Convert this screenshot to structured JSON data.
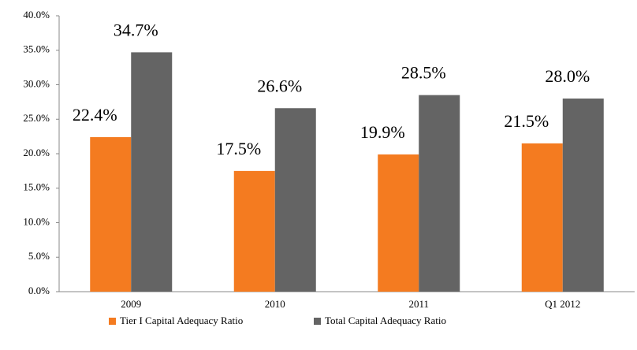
{
  "chart_data": {
    "type": "bar",
    "categories": [
      "2009",
      "2010",
      "2011",
      "Q1 2012"
    ],
    "series": [
      {
        "name": "Tier I Capital Adequacy Ratio",
        "color": "#f47b20",
        "values": [
          22.4,
          17.5,
          19.9,
          21.5
        ],
        "value_labels": [
          "22.4%",
          "17.5%",
          "19.9%",
          "21.5%"
        ]
      },
      {
        "name": "Total Capital Adequacy Ratio",
        "color": "#646464",
        "values": [
          34.7,
          26.6,
          28.5,
          28.0
        ],
        "value_labels": [
          "34.7%",
          "26.6%",
          "28.5%",
          "28.0%"
        ]
      }
    ],
    "ylim": [
      0,
      40
    ],
    "yticks": [
      {
        "value": 0,
        "label": "0.0%"
      },
      {
        "value": 5,
        "label": "5.0%"
      },
      {
        "value": 10,
        "label": "10.0%"
      },
      {
        "value": 15,
        "label": "15.0%"
      },
      {
        "value": 20,
        "label": "20.0%"
      },
      {
        "value": 25,
        "label": "25.0%"
      },
      {
        "value": 30,
        "label": "30.0%"
      },
      {
        "value": 35,
        "label": "35.0%"
      },
      {
        "value": 40,
        "label": "40.0%"
      }
    ],
    "legend": "bottom"
  }
}
